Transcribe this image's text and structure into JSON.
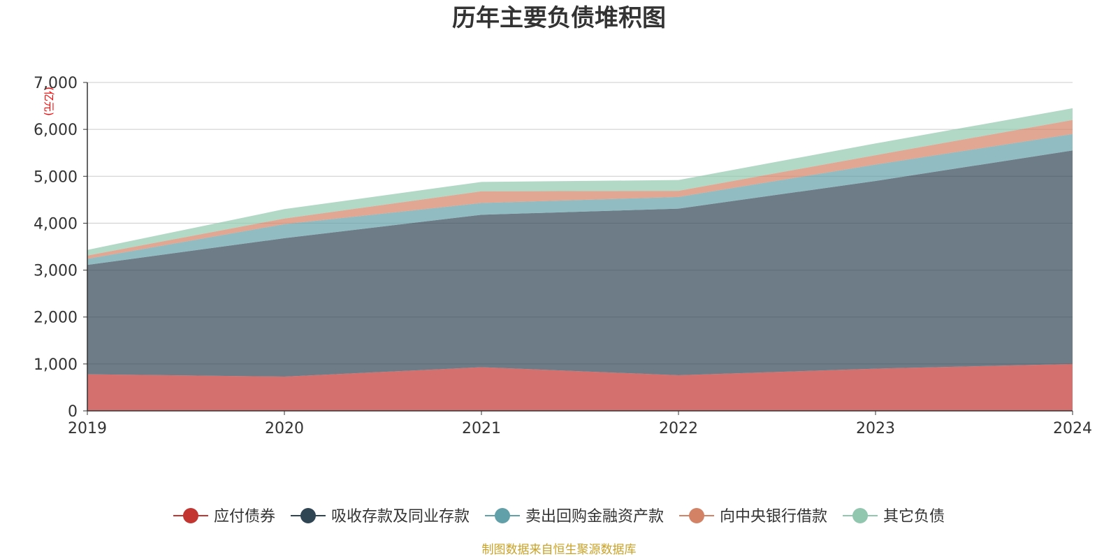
{
  "chart_data": {
    "type": "area",
    "stacked": true,
    "title": "历年主要负债堆积图",
    "unit": "(亿元)",
    "x": [
      "2019",
      "2020",
      "2021",
      "2022",
      "2023",
      "2024"
    ],
    "ylim": [
      0,
      7000
    ],
    "yticks": [
      0,
      1000,
      2000,
      3000,
      4000,
      5000,
      6000,
      7000
    ],
    "ytick_labels": [
      "0",
      "1,000",
      "2,000",
      "3,000",
      "4,000",
      "5,000",
      "6,000",
      "7,000"
    ],
    "grid": true,
    "legend_position": "bottom",
    "series": [
      {
        "name": "应付债券",
        "color": "#c23531",
        "values": [
          780,
          730,
          930,
          760,
          900,
          1000
        ]
      },
      {
        "name": "吸收存款及同业存款",
        "color": "#2f4554",
        "values": [
          2330,
          2950,
          3250,
          3550,
          4000,
          4550
        ]
      },
      {
        "name": "卖出回购金融资产款",
        "color": "#61a0a8",
        "values": [
          130,
          300,
          250,
          250,
          350,
          350
        ]
      },
      {
        "name": "向中央银行借款",
        "color": "#d48265",
        "values": [
          70,
          120,
          250,
          130,
          200,
          300
        ]
      },
      {
        "name": "其它负债",
        "color": "#91c7ae",
        "values": [
          120,
          200,
          200,
          230,
          250,
          250
        ]
      }
    ]
  },
  "footer": {
    "source": "制图数据来自恒生聚源数据库"
  }
}
